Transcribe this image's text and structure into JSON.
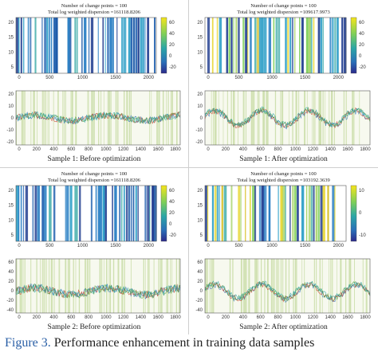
{
  "caption": {
    "figure_label": "Figure 3.",
    "text": " Performance enhancement in training data samples"
  },
  "colors": {
    "line_blue": "#2d6fb5",
    "line_red": "#c8402a",
    "line_green": "#4f9a3c",
    "band_green": "#cfe0b0",
    "teal": "#2ba6a6"
  },
  "panels": [
    {
      "id": "s1-before",
      "title_line1": "Number of change points = 100",
      "title_line2": "Total log weighted dispersion =161118.8206",
      "heat": {
        "xticks": [
          "500",
          "1000",
          "1500",
          "2000"
        ],
        "yticks": [
          "20",
          "15",
          "10",
          "5"
        ],
        "cbar": [
          "60",
          "40",
          "20",
          "0",
          "-20"
        ],
        "style": "blue"
      },
      "series": {
        "xticks": [
          "0",
          "200",
          "400",
          "600",
          "800",
          "1000",
          "1200",
          "1400",
          "1600",
          "1800"
        ],
        "yticks": [
          "20",
          "10",
          "0",
          "-10",
          "-20"
        ],
        "ymin": -20,
        "ymax": 20,
        "shape": "noise",
        "amp": 4
      },
      "label": "Sample 1: Before optimization"
    },
    {
      "id": "s1-after",
      "title_line1": "Number of change points = 100",
      "title_line2": "Total log weighted dispersion =109617.9973",
      "heat": {
        "xticks": [
          "500",
          "1000",
          "1500",
          "2000"
        ],
        "yticks": [
          "20",
          "15",
          "10",
          "5"
        ],
        "cbar": [
          "60",
          "40",
          "20",
          "0",
          "-20"
        ],
        "style": "mixed"
      },
      "series": {
        "xticks": [
          "0",
          "200",
          "400",
          "600",
          "800",
          "1000",
          "1200",
          "1400",
          "1600",
          "1800"
        ],
        "yticks": [
          "20",
          "10",
          "0",
          "-10",
          "-20"
        ],
        "ymin": -20,
        "ymax": 20,
        "shape": "wave",
        "amp": 9
      },
      "label": "Sample 1: After optimization"
    },
    {
      "id": "s2-before",
      "title_line1": "Number of change points = 100",
      "title_line2": "Total log weighted dispersion =161118.8206",
      "heat": {
        "xticks": [
          "500",
          "1000",
          "1500",
          "2000"
        ],
        "yticks": [
          "20",
          "15",
          "10",
          "5"
        ],
        "cbar": [
          "60",
          "40",
          "20",
          "0",
          "-20"
        ],
        "style": "blue"
      },
      "series": {
        "xticks": [
          "0",
          "200",
          "400",
          "600",
          "800",
          "1000",
          "1200",
          "1400",
          "1600",
          "1800"
        ],
        "yticks": [
          "60",
          "40",
          "20",
          "0",
          "-20",
          "-40"
        ],
        "ymin": -40,
        "ymax": 60,
        "shape": "noise",
        "amp": 12
      },
      "label": "Sample 2: Before optimization"
    },
    {
      "id": "s2-after",
      "title_line1": "Number of change points = 100",
      "title_line2": "Total log weighted dispersion =103192.3639",
      "heat": {
        "xticks": [
          "500",
          "1000",
          "1500",
          "2000"
        ],
        "yticks": [
          "20",
          "15",
          "10",
          "5"
        ],
        "cbar": [
          "10",
          "0",
          "-10"
        ],
        "style": "mixed"
      },
      "series": {
        "xticks": [
          "0",
          "200",
          "400",
          "600",
          "800",
          "1000",
          "1200",
          "1400",
          "1600",
          "1800"
        ],
        "yticks": [
          "60",
          "40",
          "20",
          "0",
          "-20",
          "-40"
        ],
        "ymin": -40,
        "ymax": 60,
        "shape": "wave",
        "amp": 22
      },
      "label": "Sample 2: After optimization"
    }
  ]
}
